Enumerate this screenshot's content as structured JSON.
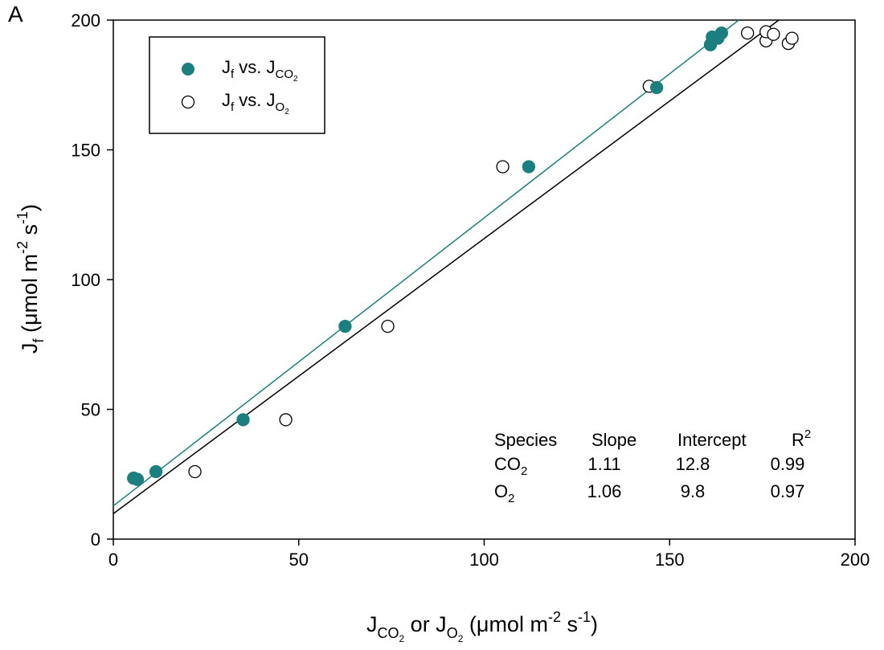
{
  "panel_label": "A",
  "chart_data": {
    "type": "scatter",
    "xlim": [
      0,
      200
    ],
    "ylim": [
      0,
      200
    ],
    "x_ticks": [
      0,
      50,
      100,
      150,
      200
    ],
    "y_ticks": [
      0,
      50,
      100,
      150,
      200
    ],
    "x_tick_labels": [
      "0",
      "50",
      "100",
      "150",
      "200"
    ],
    "y_tick_labels": [
      "0",
      "50",
      "100",
      "150",
      "200"
    ],
    "xlabel": {
      "j1": "J",
      "sub1": "CO",
      "sub1s": "2",
      "mid": " or J",
      "sub2": "O",
      "sub2s": "2",
      "units_a": " (μmol m",
      "exp_a": "-2",
      "units_b": " s",
      "exp_b": "-1",
      "units_c": ")"
    },
    "ylabel": {
      "j": "J",
      "sub": "f",
      "units_a": " (μmol m",
      "exp_a": "-2",
      "units_b": " s",
      "exp_b": "-1",
      "units_c": ")"
    },
    "grid": false,
    "legend_position": "top-left",
    "legend": [
      {
        "j": "J",
        "sub": "f",
        "mid": " vs. J",
        "sub2": "CO",
        "sub2s": "2",
        "marker": "filled"
      },
      {
        "j": "J",
        "sub": "f",
        "mid": " vs. J",
        "sub2": "O",
        "sub2s": "2",
        "marker": "open"
      }
    ],
    "series": [
      {
        "marker": "filled",
        "color": "#1b7f80",
        "points": [
          [
            5.5,
            23.5
          ],
          [
            6.5,
            23.0
          ],
          [
            11.5,
            26.0
          ],
          [
            35.0,
            46.0
          ],
          [
            62.5,
            82.0
          ],
          [
            112.0,
            143.5
          ],
          [
            146.5,
            174.0
          ],
          [
            161.0,
            190.5
          ],
          [
            161.5,
            193.5
          ],
          [
            163.0,
            193.0
          ],
          [
            164.0,
            195.0
          ]
        ],
        "fit": {
          "slope": 1.11,
          "intercept": 12.8
        }
      },
      {
        "marker": "open",
        "color": "#000000",
        "points": [
          [
            5.5,
            23.5
          ],
          [
            22.0,
            26.0
          ],
          [
            46.5,
            46.0
          ],
          [
            74.0,
            82.0
          ],
          [
            105.0,
            143.5
          ],
          [
            144.5,
            174.5
          ],
          [
            171.0,
            195.0
          ],
          [
            176.0,
            192.0
          ],
          [
            176.0,
            195.5
          ],
          [
            178.0,
            194.5
          ],
          [
            182.0,
            191.0
          ],
          [
            183.0,
            193.0
          ]
        ],
        "fit": {
          "slope": 1.06,
          "intercept": 9.8
        }
      }
    ],
    "stats_table": {
      "headers": [
        "Species",
        "Slope",
        "Intercept",
        "R"
      ],
      "header_r_exp": "2",
      "rows": [
        {
          "species": "CO",
          "species_sub": "2",
          "slope": "1.11",
          "intercept": "12.8",
          "r2": "0.99"
        },
        {
          "species": "O",
          "species_sub": "2",
          "slope": "1.06",
          "intercept": "9.8",
          "r2": "0.97"
        }
      ]
    }
  }
}
